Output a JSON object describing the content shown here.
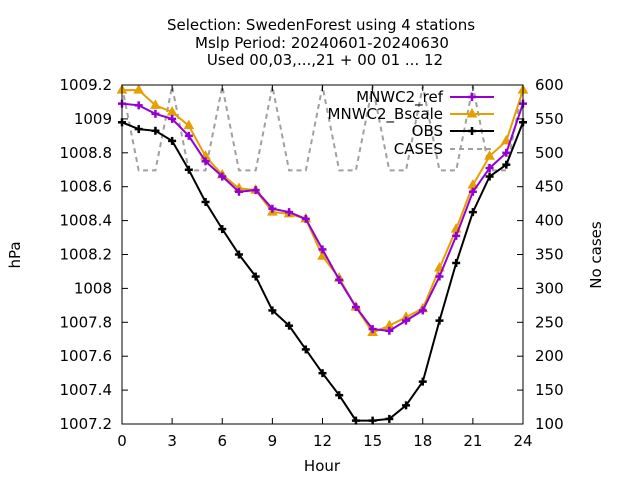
{
  "title": {
    "line1": "Selection: SwedenForest using      4 stations",
    "line2": "Mslp   Period: 20240601-20240630",
    "line3": "Used 00,03,...,21 + 00 01 ... 12"
  },
  "chart_data": {
    "type": "line",
    "xlabel": "Hour",
    "ylabel": "hPa",
    "y2label": "No cases",
    "xlim": [
      0,
      24
    ],
    "ylim": [
      1007.2,
      1009.2
    ],
    "y2lim": [
      100,
      600
    ],
    "x_ticks": [
      "0",
      "3",
      "6",
      "9",
      "12",
      "15",
      "18",
      "21",
      "24"
    ],
    "y_ticks": [
      "1007.2",
      "1007.4",
      "1007.6",
      "1007.8",
      "1008",
      "1008.2",
      "1008.4",
      "1008.6",
      "1008.8",
      "1009",
      "1009.2"
    ],
    "y2_ticks": [
      "100",
      "150",
      "200",
      "250",
      "300",
      "350",
      "400",
      "450",
      "500",
      "550",
      "600"
    ],
    "grid": false,
    "legend_position": "top-right",
    "x": [
      0,
      1,
      2,
      3,
      4,
      5,
      6,
      7,
      8,
      9,
      10,
      11,
      12,
      13,
      14,
      15,
      16,
      17,
      18,
      19,
      20,
      21,
      22,
      23,
      24
    ],
    "series": [
      {
        "name": "MNWC2_ref",
        "color": "#9400d3",
        "marker": "plus",
        "axis": "left",
        "values": [
          1009.09,
          1009.08,
          1009.03,
          1009.0,
          1008.9,
          1008.75,
          1008.66,
          1008.57,
          1008.58,
          1008.47,
          1008.45,
          1008.41,
          1008.23,
          1008.05,
          1007.89,
          1007.76,
          1007.75,
          1007.81,
          1007.87,
          1008.07,
          1008.31,
          1008.57,
          1008.71,
          1008.8,
          1009.09
        ]
      },
      {
        "name": "MNWC2_Bscale",
        "color": "#e69f00",
        "marker": "triangle",
        "axis": "left",
        "values": [
          1009.17,
          1009.17,
          1009.08,
          1009.04,
          1008.96,
          1008.78,
          1008.67,
          1008.59,
          1008.58,
          1008.45,
          1008.44,
          1008.41,
          1008.19,
          1008.06,
          1007.89,
          1007.74,
          1007.78,
          1007.83,
          1007.88,
          1008.12,
          1008.35,
          1008.61,
          1008.78,
          1008.87,
          1009.17
        ]
      },
      {
        "name": "OBS",
        "color": "#000000",
        "marker": "plus",
        "axis": "left",
        "values": [
          1008.98,
          1008.94,
          1008.93,
          1008.87,
          1008.7,
          1008.51,
          1008.35,
          1008.2,
          1008.07,
          1007.87,
          1007.78,
          1007.64,
          1007.5,
          1007.37,
          1007.22,
          1007.22,
          1007.23,
          1007.31,
          1007.45,
          1007.81,
          1008.15,
          1008.45,
          1008.66,
          1008.73,
          1008.98
        ]
      },
      {
        "name": "CASES",
        "color": "#a0a0a0",
        "dashed": true,
        "axis": "right",
        "values": [
          598,
          474,
          474,
          598,
          474,
          474,
          598,
          474,
          474,
          598,
          474,
          474,
          598,
          474,
          474,
          598,
          474,
          474,
          598,
          474,
          474,
          598,
          474,
          474,
          598
        ]
      }
    ]
  }
}
